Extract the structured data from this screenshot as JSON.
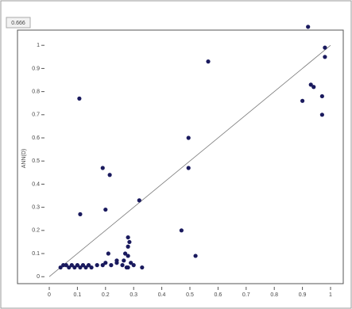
{
  "chart_data": {
    "type": "scatter",
    "badge": "0.666",
    "ylabel": "ANN(D)",
    "color": "#1a1a5e",
    "x": [
      0.92,
      0.98,
      0.98,
      0.93,
      0.94,
      0.9,
      0.97,
      0.97,
      0.565,
      0.107,
      0.495,
      0.495,
      0.19,
      0.215,
      0.32,
      0.11,
      0.2,
      0.47,
      0.52,
      0.33,
      0.28,
      0.285,
      0.28,
      0.27,
      0.28,
      0.265,
      0.29,
      0.275,
      0.21,
      0.24,
      0.04,
      0.05,
      0.06,
      0.07,
      0.08,
      0.09,
      0.1,
      0.11,
      0.12,
      0.13,
      0.14,
      0.15,
      0.17,
      0.19,
      0.2,
      0.22,
      0.24,
      0.26,
      0.28,
      0.3
    ],
    "y": [
      1.08,
      0.99,
      0.95,
      0.83,
      0.82,
      0.76,
      0.78,
      0.7,
      0.93,
      0.77,
      0.6,
      0.47,
      0.47,
      0.44,
      0.33,
      0.27,
      0.29,
      0.2,
      0.09,
      0.04,
      0.17,
      0.15,
      0.13,
      0.1,
      0.09,
      0.07,
      0.06,
      0.04,
      0.1,
      0.07,
      0.04,
      0.05,
      0.05,
      0.04,
      0.05,
      0.04,
      0.05,
      0.04,
      0.05,
      0.04,
      0.05,
      0.04,
      0.05,
      0.05,
      0.06,
      0.05,
      0.06,
      0.05,
      0.04,
      0.05
    ],
    "xlim": [
      0,
      1
    ],
    "ylim": [
      -0.03,
      1.1
    ],
    "xticks": [
      0,
      0.1,
      0.2,
      0.3,
      0.4,
      0.5,
      0.6,
      0.7,
      0.8,
      0.9,
      1
    ],
    "yticks": [
      0,
      0.1,
      0.2,
      0.3,
      0.4,
      0.5,
      0.6,
      0.7,
      0.8,
      0.9,
      1
    ]
  }
}
